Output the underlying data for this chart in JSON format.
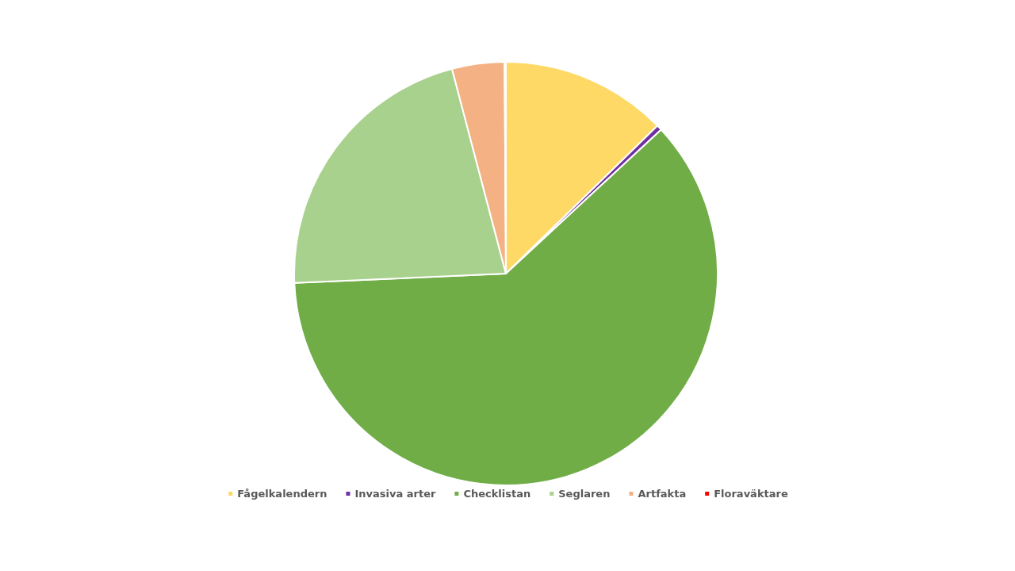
{
  "chart_data": {
    "type": "pie",
    "categories": [
      "Fågelkalendern",
      "Invasiva arter",
      "Checklistan",
      "Seglaren",
      "Artfakta",
      "Floraväktare"
    ],
    "values": [
      12.7,
      0.4,
      61.2,
      21.6,
      4.0,
      0.1
    ],
    "colors": [
      "#ffd966",
      "#7030a0",
      "#70ad47",
      "#a9d18e",
      "#f4b183",
      "#ff0000"
    ],
    "legend": "bottom"
  }
}
